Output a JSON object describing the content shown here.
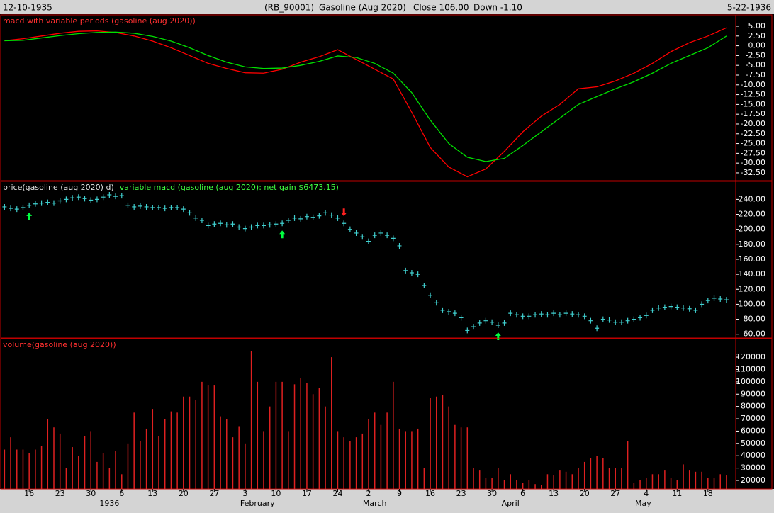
{
  "header": {
    "start_date": "12-10-1935",
    "symbol": "(RB_90001)",
    "name": "Gasoline (Aug 2020)",
    "close": "Close 106.00",
    "change": "Down -1.10",
    "end_date": "5-22-1936"
  },
  "x_axis": {
    "xlim": [
      -0.5,
      118.5
    ],
    "day_ticks": [
      {
        "value": 4,
        "label": "16"
      },
      {
        "value": 9,
        "label": "23"
      },
      {
        "value": 14,
        "label": "30"
      },
      {
        "value": 19,
        "label": "6"
      },
      {
        "value": 24,
        "label": "13"
      },
      {
        "value": 29,
        "label": "20"
      },
      {
        "value": 34,
        "label": "27"
      },
      {
        "value": 39,
        "label": "3"
      },
      {
        "value": 44,
        "label": "10"
      },
      {
        "value": 49,
        "label": "17"
      },
      {
        "value": 54,
        "label": "24"
      },
      {
        "value": 59,
        "label": "2"
      },
      {
        "value": 64,
        "label": "9"
      },
      {
        "value": 69,
        "label": "16"
      },
      {
        "value": 74,
        "label": "23"
      },
      {
        "value": 79,
        "label": "30"
      },
      {
        "value": 84,
        "label": "6"
      },
      {
        "value": 89,
        "label": "13"
      },
      {
        "value": 94,
        "label": "20"
      },
      {
        "value": 99,
        "label": "27"
      },
      {
        "value": 104,
        "label": "4"
      },
      {
        "value": 109,
        "label": "11"
      },
      {
        "value": 114,
        "label": "18"
      }
    ],
    "month_ticks": [
      {
        "value": 17,
        "label": "1936"
      },
      {
        "value": 41,
        "label": "February"
      },
      {
        "value": 60,
        "label": "March"
      },
      {
        "value": 82,
        "label": "April"
      },
      {
        "value": 103.5,
        "label": "May"
      }
    ]
  },
  "chart_data": [
    {
      "type": "line",
      "title": "macd with variable periods (gasoline (aug 2020))",
      "x": [
        0,
        3,
        6,
        9,
        12,
        15,
        18,
        21,
        24,
        27,
        30,
        33,
        36,
        39,
        42,
        45,
        48,
        51,
        54,
        57,
        60,
        63,
        66,
        69,
        72,
        75,
        78,
        81,
        84,
        87,
        90,
        93,
        96,
        99,
        102,
        105,
        108,
        111,
        114,
        117
      ],
      "series": [
        {
          "color": "#ff0000",
          "values": [
            1.3,
            1.8,
            2.5,
            3.2,
            3.7,
            3.8,
            3.4,
            2.5,
            1.2,
            -0.5,
            -2.5,
            -4.5,
            -5.8,
            -6.9,
            -7.0,
            -6.0,
            -4.2,
            -2.8,
            -1.0,
            -3.5,
            -6.0,
            -8.5,
            -17,
            -26,
            -31,
            -33.5,
            -31.5,
            -27,
            -22,
            -18,
            -15,
            -11,
            -10.5,
            -9,
            -7,
            -4.5,
            -1.5,
            0.8,
            2.5,
            4.6
          ]
        },
        {
          "color": "#00e000",
          "values": [
            1.3,
            1.4,
            2.0,
            2.6,
            3.1,
            3.4,
            3.5,
            3.2,
            2.4,
            1.2,
            -0.5,
            -2.5,
            -4.2,
            -5.4,
            -5.8,
            -5.7,
            -5.0,
            -4.0,
            -2.6,
            -3.0,
            -4.5,
            -7.0,
            -12,
            -19,
            -25,
            -28.5,
            -29.6,
            -28.8,
            -25.5,
            -22,
            -18.5,
            -15,
            -13,
            -11,
            -9.2,
            -7,
            -4.5,
            -2.5,
            -0.5,
            2.5
          ]
        }
      ],
      "ylim": [
        -34.5,
        7.9
      ],
      "yticks": [
        {
          "value": 5,
          "label": "5.00"
        },
        {
          "value": 2.5,
          "label": "2.50"
        },
        {
          "value": 0,
          "label": "0.00"
        },
        {
          "value": -2.5,
          "label": "-2.50"
        },
        {
          "value": -5,
          "label": "-5.00"
        },
        {
          "value": -7.5,
          "label": "-7.50"
        },
        {
          "value": -10,
          "label": "-10.00"
        },
        {
          "value": -12.5,
          "label": "-12.50"
        },
        {
          "value": -15,
          "label": "-15.00"
        },
        {
          "value": -17.5,
          "label": "-17.50"
        },
        {
          "value": -20,
          "label": "-20.00"
        },
        {
          "value": -22.5,
          "label": "-22.50"
        },
        {
          "value": -25,
          "label": "-25.00"
        },
        {
          "value": -27.5,
          "label": "-27.50"
        },
        {
          "value": -30,
          "label": "-30.00"
        },
        {
          "value": -32.5,
          "label": "-32.50"
        }
      ]
    },
    {
      "type": "price",
      "title": "price(gasoline (aug 2020) d)",
      "subtitle": "variable macd (gasoline (aug 2020): net gain $6473.15)",
      "color": "#40d0d0",
      "values": [
        230,
        228,
        227,
        229,
        232,
        234,
        235,
        236,
        235,
        238,
        240,
        242,
        243,
        241,
        239,
        240,
        243,
        246,
        244,
        245,
        232,
        230,
        231,
        230,
        229,
        229,
        228,
        229,
        229,
        227,
        222,
        215,
        212,
        205,
        207,
        208,
        206,
        207,
        203,
        201,
        203,
        205,
        205,
        206,
        207,
        208,
        212,
        215,
        214,
        217,
        216,
        218,
        222,
        219,
        215,
        208,
        200,
        195,
        190,
        184,
        192,
        195,
        192,
        188,
        178,
        145,
        142,
        140,
        125,
        112,
        102,
        92,
        90,
        88,
        82,
        65,
        70,
        75,
        78,
        76,
        72,
        75,
        88,
        86,
        84,
        84,
        86,
        87,
        86,
        88,
        86,
        88,
        87,
        86,
        84,
        78,
        68,
        80,
        79,
        76,
        76,
        78,
        80,
        82,
        85,
        92,
        95,
        96,
        97,
        96,
        95,
        94,
        92,
        100,
        105,
        108,
        107,
        106
      ],
      "buy_signals": [
        4,
        45,
        80
      ],
      "sell_signals": [
        55
      ],
      "ylim": [
        55,
        264
      ],
      "yticks": [
        {
          "value": 60,
          "label": "60.00"
        },
        {
          "value": 80,
          "label": "80.00"
        },
        {
          "value": 100,
          "label": "100.00"
        },
        {
          "value": 120,
          "label": "120.00"
        },
        {
          "value": 140,
          "label": "140.00"
        },
        {
          "value": 160,
          "label": "160.00"
        },
        {
          "value": 180,
          "label": "180.00"
        },
        {
          "value": 200,
          "label": "200.00"
        },
        {
          "value": 220,
          "label": "220.00"
        },
        {
          "value": 240,
          "label": "240.00"
        }
      ]
    },
    {
      "type": "bar",
      "title": "volume(gasoline (aug 2020))",
      "color": "#e02020",
      "values": [
        45000,
        55000,
        45000,
        45000,
        42000,
        45000,
        48000,
        70000,
        63000,
        58000,
        30000,
        47000,
        40000,
        56000,
        60000,
        35000,
        42000,
        30000,
        44000,
        25000,
        50000,
        75000,
        52000,
        62000,
        78000,
        56000,
        70000,
        76000,
        75000,
        88000,
        88000,
        85000,
        100000,
        97000,
        97000,
        72000,
        70000,
        55000,
        64000,
        50000,
        125000,
        100000,
        60000,
        80000,
        100000,
        100000,
        60000,
        98000,
        103000,
        99000,
        90000,
        95000,
        80000,
        120000,
        60000,
        55000,
        52000,
        55000,
        58000,
        70000,
        75000,
        65000,
        75000,
        100000,
        62000,
        60000,
        60000,
        62000,
        30000,
        87000,
        88000,
        89000,
        80000,
        65000,
        63000,
        63000,
        30000,
        28000,
        22000,
        22000,
        30000,
        20000,
        25000,
        20000,
        18000,
        20000,
        17000,
        16000,
        25000,
        24000,
        28000,
        27000,
        25000,
        30000,
        35000,
        38000,
        40000,
        38000,
        30000,
        30000,
        30000,
        52000,
        18000,
        20000,
        22000,
        25000,
        25000,
        28000,
        22000,
        20000,
        33000,
        28000,
        27000,
        27000,
        22000,
        22000,
        25000,
        24000
      ],
      "ylim": [
        13100,
        135000
      ],
      "yticks": [
        20000,
        30000,
        40000,
        50000,
        60000,
        70000,
        80000,
        90000,
        100000,
        110000,
        120000
      ]
    }
  ]
}
